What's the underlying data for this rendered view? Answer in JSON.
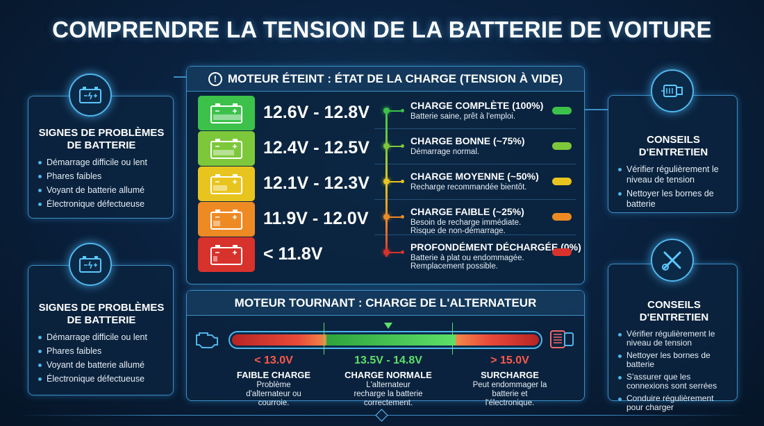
{
  "title": "COMPRENDRE LA TENSION DE LA BATTERIE DE VOITURE",
  "left_panels": [
    {
      "icon": "battery-icon",
      "title": "SIGNES DE PROBLÈMES DE BATTERIE",
      "items": [
        "Démarrage difficile ou lent",
        "Phares faibles",
        "Voyant de batterie allumé",
        "Électronique défectueuse"
      ]
    },
    {
      "icon": "battery-icon",
      "title": "SIGNES DE PROBLÈMES DE BATTERIE",
      "items": [
        "Démarrage difficile ou lent",
        "Phares faibles",
        "Voyant de batterie allumé",
        "Électronique défectueuse"
      ]
    }
  ],
  "engine_off": {
    "icon": "alert-icon",
    "title": "MOTEUR ÉTEINT : ÉTAT DE LA CHARGE (TENSION À VIDE)",
    "rows": [
      {
        "voltage": "12.6V - 12.8V",
        "label": "CHARGE COMPLÈTE (100%)",
        "desc": "Batterie saine, prêt à l'emploi.",
        "color": "#3cc24a",
        "level": 1.0
      },
      {
        "voltage": "12.4V - 12.5V",
        "label": "CHARGE BONNE (~75%)",
        "desc": "Démarrage normal.",
        "color": "#7dc83a",
        "level": 0.75
      },
      {
        "voltage": "12.1V - 12.3V",
        "label": "CHARGE MOYENNE (~50%)",
        "desc": "Recharge recommandée bientôt.",
        "color": "#e8c41e",
        "level": 0.5
      },
      {
        "voltage": "11.9V - 12.0V",
        "label": "CHARGE FAIBLE (~25%)",
        "desc": "Besoin de recharge immédiate.\nRisque de non-démarrage.",
        "color": "#ee8a24",
        "level": 0.25
      },
      {
        "voltage": "< 11.8V",
        "label": "PROFONDÉMENT DÉCHARGÉE (0%)",
        "desc": "Batterie à plat ou endommagée.\nRemplacement possible.",
        "color": "#d8322c",
        "level": 0
      }
    ]
  },
  "engine_on": {
    "title": "MOTEUR TOURNANT : CHARGE DE L'ALTERNATEUR",
    "zones": [
      {
        "voltage": "< 13.0V",
        "label": "FAIBLE CHARGE",
        "desc": "Problème d'alternateur ou courroie.",
        "color": "#ff5a4a"
      },
      {
        "voltage": "13.5V - 14.8V",
        "label": "CHARGE NORMALE",
        "desc": "L'alternateur recharge la batterie correctement.",
        "color": "#5de06a"
      },
      {
        "voltage": "> 15.0V",
        "label": "SURCHARGE",
        "desc": "Peut endommager la batterie et l'électronique.",
        "color": "#ff5a4a"
      }
    ]
  },
  "right_panels": [
    {
      "icon": "engine-icon",
      "title": "CONSEILS D'ENTRETIEN",
      "items": [
        "Vérifier régulièrement le niveau de tension",
        "Nettoyer les bornes de batterie"
      ]
    },
    {
      "icon": "wrench-screwdriver-icon",
      "title": "CONSEILS D'ENTRETIEN",
      "items": [
        "Vérifier régulièrement le niveau de tension",
        "Nettoyer les bornes de batterie",
        "S'assurer que les connexions sont serrées",
        "Conduire régulièrement pour charger"
      ]
    }
  ]
}
